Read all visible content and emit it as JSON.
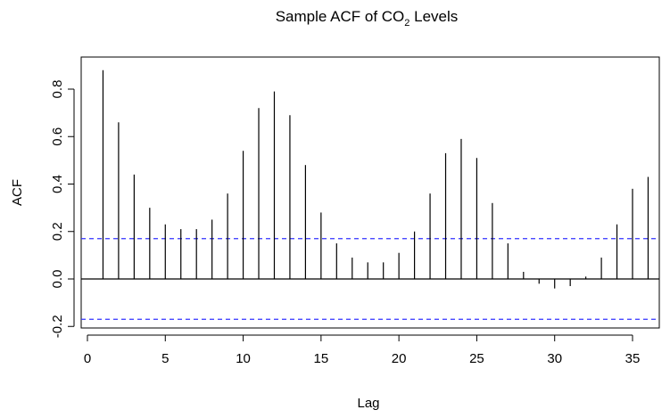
{
  "chart_data": {
    "type": "bar",
    "title": "Sample ACF of CO2 Levels",
    "title_parts": {
      "pre": "Sample  ACF  of  CO",
      "sub": "2",
      "post": "  Levels"
    },
    "xlabel": "Lag",
    "ylabel": "ACF",
    "xlim": [
      0,
      37
    ],
    "ylim": [
      -0.2,
      0.88
    ],
    "x_ticks": [
      0,
      5,
      10,
      15,
      20,
      25,
      30,
      35
    ],
    "x_tick_labels": [
      "0",
      "5",
      "10",
      "15",
      "20",
      "25",
      "30",
      "35"
    ],
    "y_ticks": [
      -0.2,
      0.0,
      0.2,
      0.4,
      0.6,
      0.8
    ],
    "y_tick_labels": [
      "-0.2",
      "0.0",
      "0.2",
      "0.4",
      "0.6",
      "0.8"
    ],
    "confidence_bound": 0.17,
    "confidence_color": "#3333ff",
    "lags": [
      1,
      2,
      3,
      4,
      5,
      6,
      7,
      8,
      9,
      10,
      11,
      12,
      13,
      14,
      15,
      16,
      17,
      18,
      19,
      20,
      21,
      22,
      23,
      24,
      25,
      26,
      27,
      28,
      29,
      30,
      31,
      32,
      33,
      34,
      35,
      36
    ],
    "values": [
      0.88,
      0.66,
      0.44,
      0.3,
      0.23,
      0.21,
      0.21,
      0.25,
      0.36,
      0.54,
      0.72,
      0.79,
      0.69,
      0.48,
      0.28,
      0.15,
      0.09,
      0.07,
      0.07,
      0.11,
      0.2,
      0.36,
      0.53,
      0.59,
      0.51,
      0.32,
      0.15,
      0.03,
      -0.02,
      -0.04,
      -0.03,
      0.01,
      0.09,
      0.23,
      0.38,
      0.43
    ],
    "grid": false,
    "bar_color": "#000000"
  }
}
